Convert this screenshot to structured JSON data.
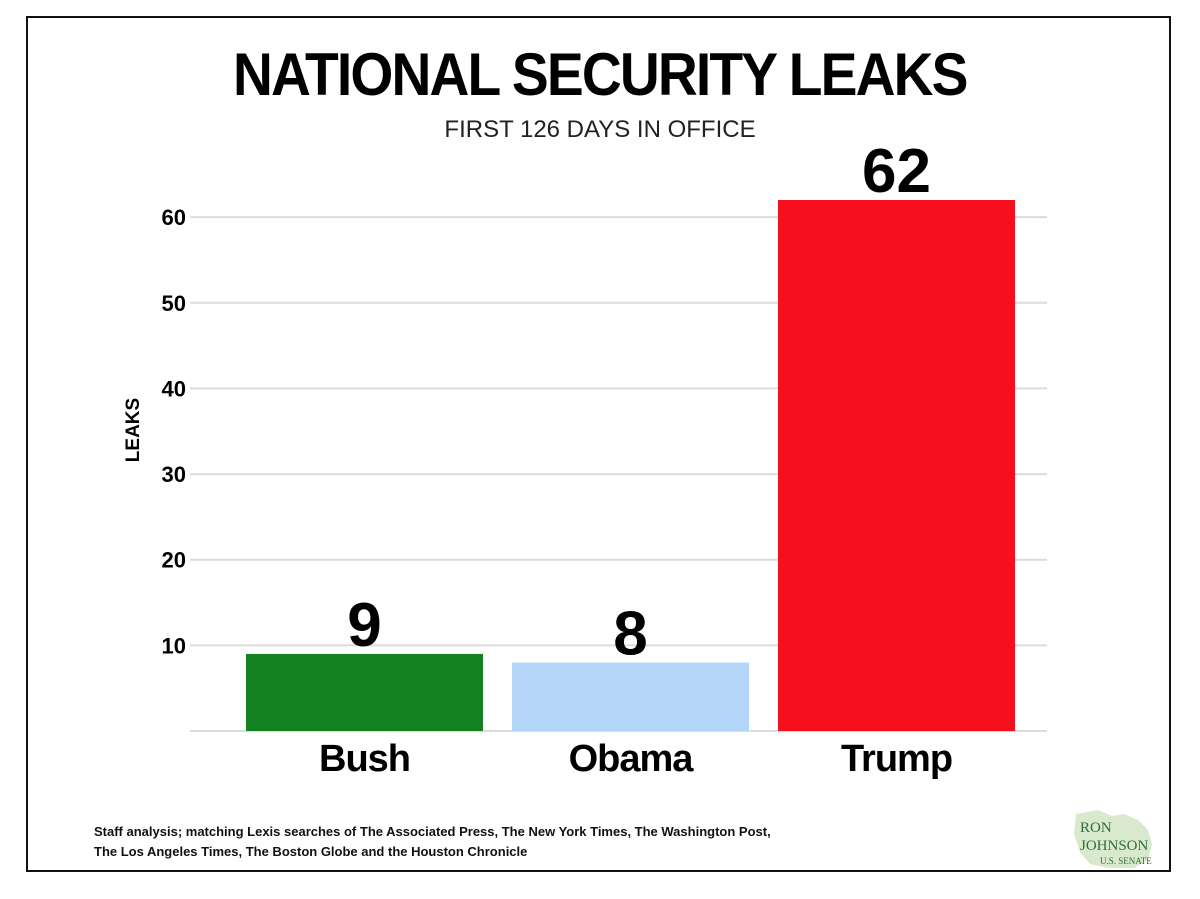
{
  "chart_data": {
    "type": "bar",
    "title": "NATIONAL SECURITY LEAKS",
    "subtitle": "FIRST 126 DAYS IN OFFICE",
    "ylabel": "LEAKS",
    "xlabel": "",
    "categories": [
      "Bush",
      "Obama",
      "Trump"
    ],
    "values": [
      9,
      8,
      62
    ],
    "data_labels": [
      "9",
      "8",
      "62"
    ],
    "colors": [
      "#148220",
      "#b3d6f8",
      "#f6101e"
    ],
    "ylim": [
      0,
      62
    ],
    "yticks": [
      10,
      20,
      30,
      40,
      50,
      60
    ],
    "ytick_labels": [
      "10",
      "20",
      "30",
      "40",
      "50",
      "60"
    ],
    "grid": true,
    "legend": "none"
  },
  "source_note": {
    "line1": "Staff analysis; matching Lexis searches of The Associated Press, The New York Times, The Washington Post,",
    "line2": "The Los Angeles Times, The Boston Globe and the Houston Chronicle"
  },
  "logo": {
    "line1": "RON",
    "line2": "JOHNSON",
    "line3": "U.S. SENATE",
    "accent_color": "#9cc58a",
    "text_color": "#2f6e36"
  }
}
